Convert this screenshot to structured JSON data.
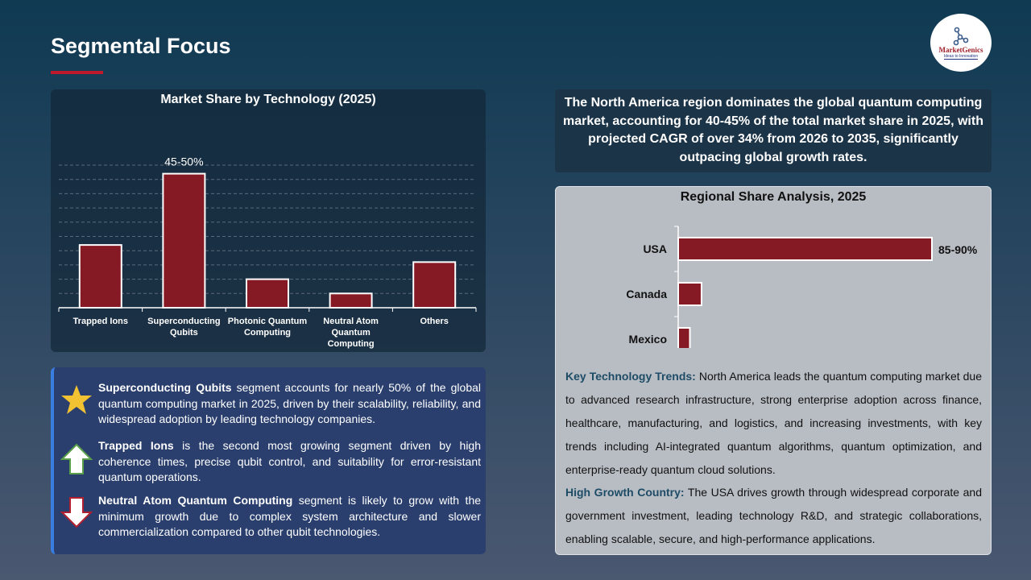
{
  "page": {
    "title": "Segmental Focus",
    "accent": "#c0192b"
  },
  "logo": {
    "name": "MarketGenics",
    "tagline": "Ideas to Innovation"
  },
  "chart_data": [
    {
      "type": "bar",
      "title": "Market Share by Technology (2025)",
      "categories": [
        "Trapped Ions",
        "Superconducting Qubits",
        "Photonic Quantum Computing",
        "Neutral Atom Quantum Computing",
        "Others"
      ],
      "values": [
        22,
        47,
        10,
        5,
        16
      ],
      "data_labels": [
        "",
        "45-50%",
        "",
        "",
        ""
      ],
      "ylim": [
        0,
        50
      ],
      "grid": true,
      "bar_color": "#861a24"
    },
    {
      "type": "bar",
      "orientation": "horizontal",
      "title": "Regional Share Analysis, 2025",
      "categories": [
        "USA",
        "Canada",
        "Mexico"
      ],
      "values": [
        87,
        8,
        4
      ],
      "data_labels": [
        "85-90%",
        "",
        ""
      ],
      "xlim": [
        0,
        87
      ],
      "grid": false,
      "bar_color": "#861a24"
    }
  ],
  "insights": [
    {
      "icon": "star-icon",
      "bold": "Superconducting Qubits",
      "text": " segment accounts for nearly 50% of the global quantum computing market in 2025, driven by their scalability, reliability, and widespread adoption by leading technology companies."
    },
    {
      "icon": "arrow-up-icon",
      "bold": "Trapped Ions",
      "text": " is the second most growing segment driven by high coherence times, precise qubit control, and suitability for error-resistant quantum operations."
    },
    {
      "icon": "arrow-down-icon",
      "bold": "Neutral Atom Quantum Computing",
      "text": " segment is likely to grow with the minimum growth due to complex system architecture and slower commercialization compared to other qubit technologies."
    }
  ],
  "summary": "The North America region dominates the global quantum computing market, accounting for 40-45% of the total market share in 2025, with projected CAGR of over 34% from 2026 to 2035, significantly outpacing global growth rates.",
  "trends": {
    "label": "Key Technology Trends:",
    "text": " North America leads the quantum computing market due to advanced research infrastructure, strong enterprise adoption across finance, healthcare, manufacturing, and logistics, and increasing investments, with key trends including AI-integrated quantum algorithms, quantum optimization, and enterprise-ready quantum cloud solutions."
  },
  "growth": {
    "label": "High Growth Country:",
    "text": " The USA drives growth through widespread corporate and government investment, leading technology R&D, and strategic collaborations, enabling scalable, secure, and high-performance applications."
  }
}
